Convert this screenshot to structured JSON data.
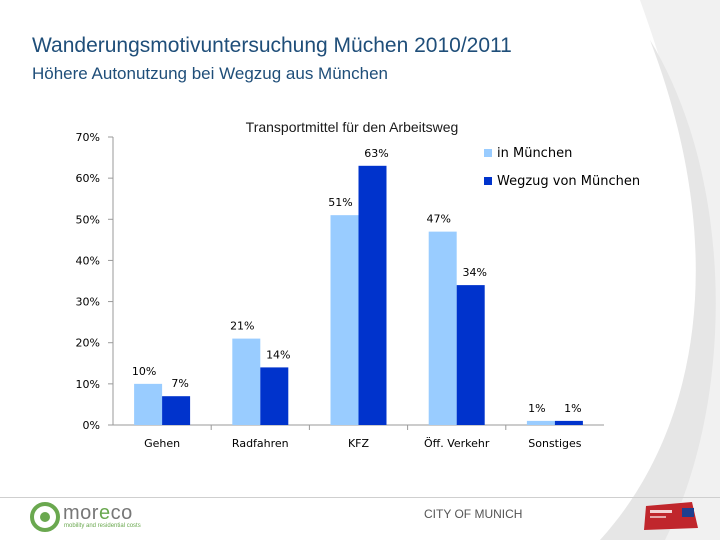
{
  "header": {
    "title": "Wanderungsmotivuntersuchung Müchen 2010/2011",
    "subtitle": "Höhere Autonutzung bei Wegzug aus München"
  },
  "chart_data": {
    "type": "bar",
    "title": "Transportmittel für den Arbeitsweg",
    "categories": [
      "Gehen",
      "Radfahren",
      "KFZ",
      "Öff. Verkehr",
      "Sonstiges"
    ],
    "series": [
      {
        "name": "in München",
        "values": [
          10,
          21,
          51,
          47,
          1
        ],
        "labels": [
          "10%",
          "21%",
          "51%",
          "47%",
          "1%"
        ],
        "color": "#99ccff"
      },
      {
        "name": "Wegzug von München",
        "values": [
          7,
          14,
          63,
          34,
          1
        ],
        "labels": [
          "7%",
          "14%",
          "63%",
          "34%",
          "1%"
        ],
        "color": "#0033cc"
      }
    ],
    "ylim": [
      0,
      70
    ],
    "yticks": [
      0,
      10,
      20,
      30,
      40,
      50,
      60,
      70
    ],
    "ytick_labels": [
      "0%",
      "10%",
      "20%",
      "30%",
      "40%",
      "50%",
      "60%",
      "70%"
    ],
    "xlabel": "",
    "ylabel": "",
    "legend": "top-right",
    "grid": false
  },
  "footer": {
    "logo_pre": "mor",
    "logo_accent": "e",
    "logo_post": "co",
    "logo_tagline": "mobility and residential costs",
    "city": "CITY OF MUNICH"
  },
  "colors": {
    "title": "#1f4e79",
    "light_series": "#99ccff",
    "dark_series": "#0033cc",
    "logo_green": "#6aa84f",
    "badge_red": "#c0262c"
  }
}
